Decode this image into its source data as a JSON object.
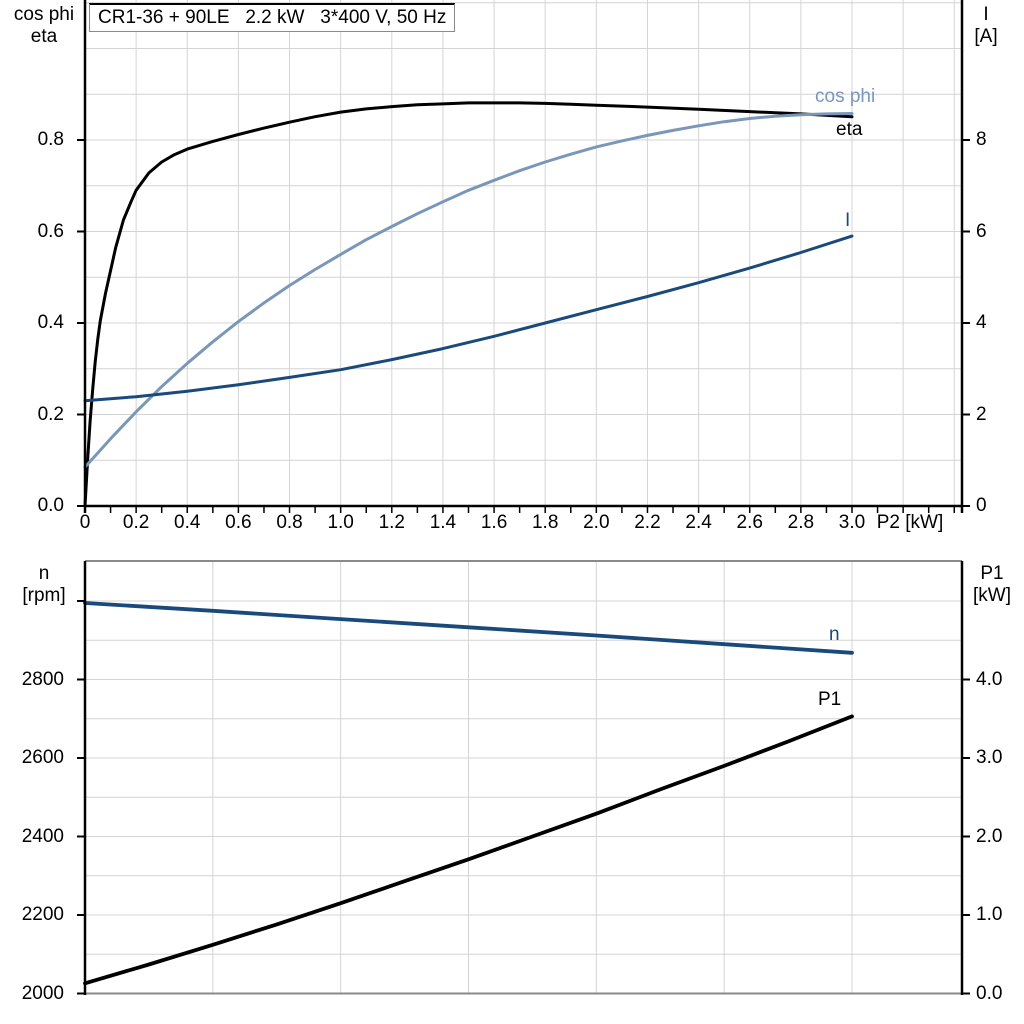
{
  "title": "CR1-36 + 90LE   2.2 kW   3*400 V, 50 Hz",
  "colors": {
    "black": "#000000",
    "light_blue": "#7a97ba",
    "dark_blue": "#1a4a7c",
    "grid": "#d4d4d4",
    "frame": "#8a8a8a",
    "axis": "#000000"
  },
  "chart_data": [
    {
      "type": "line",
      "title": "CR1-36 + 90LE   2.2 kW   3*400 V, 50 Hz",
      "xlabel": "P2 [kW]",
      "ylabel_left": "cos phi\neta",
      "ylabel_right": "I\n[A]",
      "xlim": [
        0,
        3.43
      ],
      "ylim_left": [
        0,
        1.106
      ],
      "ylim_right": [
        0,
        11.06
      ],
      "grid": "on",
      "x_gridline_step": 0.2,
      "y_gridline_step_left": 0.1,
      "xticks": [
        0,
        0.2,
        0.4,
        0.6,
        0.8,
        1.0,
        1.2,
        1.4,
        1.6,
        1.8,
        2.0,
        2.2,
        2.4,
        2.6,
        2.8,
        3.0
      ],
      "xtick_labels": [
        "0",
        "0.2",
        "0.4",
        "0.6",
        "0.8",
        "1.0",
        "1.2",
        "1.4",
        "1.6",
        "1.8",
        "2.0",
        "2.2",
        "2.4",
        "2.6",
        "2.8",
        "3.0"
      ],
      "yticks_left": [
        0.0,
        0.2,
        0.4,
        0.6,
        0.8
      ],
      "ytick_labels_left": [
        "0.0",
        "0.2",
        "0.4",
        "0.6",
        "0.8"
      ],
      "yticks_right": [
        0,
        2,
        4,
        6,
        8
      ],
      "ytick_labels_right": [
        "0",
        "2",
        "4",
        "6",
        "8"
      ],
      "series": [
        {
          "name": "eta",
          "axis": "left",
          "color": "#000000",
          "points": [
            [
              0,
              0
            ],
            [
              0.01,
              0.1
            ],
            [
              0.02,
              0.185
            ],
            [
              0.03,
              0.255
            ],
            [
              0.04,
              0.315
            ],
            [
              0.05,
              0.365
            ],
            [
              0.06,
              0.405
            ],
            [
              0.08,
              0.465
            ],
            [
              0.1,
              0.515
            ],
            [
              0.12,
              0.565
            ],
            [
              0.15,
              0.625
            ],
            [
              0.18,
              0.665
            ],
            [
              0.2,
              0.69
            ],
            [
              0.25,
              0.728
            ],
            [
              0.3,
              0.752
            ],
            [
              0.35,
              0.768
            ],
            [
              0.4,
              0.78
            ],
            [
              0.5,
              0.797
            ],
            [
              0.6,
              0.812
            ],
            [
              0.7,
              0.826
            ],
            [
              0.8,
              0.839
            ],
            [
              0.9,
              0.851
            ],
            [
              1.0,
              0.861
            ],
            [
              1.1,
              0.868
            ],
            [
              1.2,
              0.873
            ],
            [
              1.3,
              0.877
            ],
            [
              1.4,
              0.879
            ],
            [
              1.5,
              0.881
            ],
            [
              1.6,
              0.881
            ],
            [
              1.7,
              0.881
            ],
            [
              1.8,
              0.88
            ],
            [
              1.9,
              0.878
            ],
            [
              2.0,
              0.876
            ],
            [
              2.2,
              0.872
            ],
            [
              2.4,
              0.867
            ],
            [
              2.6,
              0.862
            ],
            [
              2.8,
              0.857
            ],
            [
              3.0,
              0.851
            ]
          ]
        },
        {
          "name": "cos phi",
          "axis": "left",
          "color": "#7a97ba",
          "points": [
            [
              0,
              0.085
            ],
            [
              0.1,
              0.147
            ],
            [
              0.2,
              0.206
            ],
            [
              0.3,
              0.261
            ],
            [
              0.4,
              0.312
            ],
            [
              0.5,
              0.359
            ],
            [
              0.6,
              0.403
            ],
            [
              0.7,
              0.444
            ],
            [
              0.8,
              0.482
            ],
            [
              0.9,
              0.517
            ],
            [
              1.0,
              0.55
            ],
            [
              1.1,
              0.582
            ],
            [
              1.2,
              0.611
            ],
            [
              1.3,
              0.639
            ],
            [
              1.4,
              0.665
            ],
            [
              1.5,
              0.69
            ],
            [
              1.6,
              0.712
            ],
            [
              1.7,
              0.733
            ],
            [
              1.8,
              0.752
            ],
            [
              1.9,
              0.769
            ],
            [
              2.0,
              0.785
            ],
            [
              2.1,
              0.798
            ],
            [
              2.2,
              0.81
            ],
            [
              2.3,
              0.821
            ],
            [
              2.4,
              0.831
            ],
            [
              2.5,
              0.84
            ],
            [
              2.6,
              0.847
            ],
            [
              2.7,
              0.852
            ],
            [
              2.8,
              0.855
            ],
            [
              2.9,
              0.857
            ],
            [
              3.0,
              0.858
            ]
          ]
        },
        {
          "name": "I",
          "axis": "right",
          "color": "#1a4a7c",
          "points": [
            [
              0,
              2.3
            ],
            [
              0.2,
              2.39
            ],
            [
              0.4,
              2.51
            ],
            [
              0.6,
              2.65
            ],
            [
              0.8,
              2.81
            ],
            [
              1.0,
              2.98
            ],
            [
              1.2,
              3.2
            ],
            [
              1.4,
              3.44
            ],
            [
              1.6,
              3.71
            ],
            [
              1.8,
              4.0
            ],
            [
              2.0,
              4.29
            ],
            [
              2.2,
              4.58
            ],
            [
              2.4,
              4.88
            ],
            [
              2.6,
              5.2
            ],
            [
              2.8,
              5.54
            ],
            [
              3.0,
              5.9
            ]
          ]
        }
      ]
    },
    {
      "type": "line",
      "xlabel": "",
      "ylabel_left": "n\n[rpm]",
      "ylabel_right": "P1\n[kW]",
      "xlim": [
        0,
        3.43
      ],
      "ylim_left": [
        2000,
        3100
      ],
      "ylim_right": [
        0,
        5.5
      ],
      "grid": "on",
      "x_gridline_step": 0.5,
      "y_gridline_step_right": 0.5,
      "yticks_left": [
        2000,
        2200,
        2400,
        2600,
        2800,
        3000
      ],
      "ytick_labels_left": [
        "2000",
        "2200",
        "2400",
        "2600",
        "2800",
        ""
      ],
      "yticks_right": [
        0.0,
        1.0,
        2.0,
        3.0,
        4.0
      ],
      "ytick_labels_right": [
        "0.0",
        "1.0",
        "2.0",
        "3.0",
        "4.0"
      ],
      "series": [
        {
          "name": "n",
          "axis": "left",
          "color": "#1a4a7c",
          "points": [
            [
              0,
              2995
            ],
            [
              0.5,
              2975
            ],
            [
              1.0,
              2954
            ],
            [
              1.5,
              2933
            ],
            [
              2.0,
              2912
            ],
            [
              2.5,
              2890
            ],
            [
              3.0,
              2868
            ]
          ]
        },
        {
          "name": "P1",
          "axis": "right",
          "color": "#000000",
          "points": [
            [
              0,
              0.13
            ],
            [
              0.25,
              0.37
            ],
            [
              0.5,
              0.62
            ],
            [
              0.75,
              0.88
            ],
            [
              1.0,
              1.15
            ],
            [
              1.25,
              1.43
            ],
            [
              1.5,
              1.71
            ],
            [
              1.75,
              2.0
            ],
            [
              2.0,
              2.29
            ],
            [
              2.25,
              2.6
            ],
            [
              2.5,
              2.9
            ],
            [
              2.75,
              3.21
            ],
            [
              3.0,
              3.53
            ]
          ]
        }
      ]
    }
  ]
}
